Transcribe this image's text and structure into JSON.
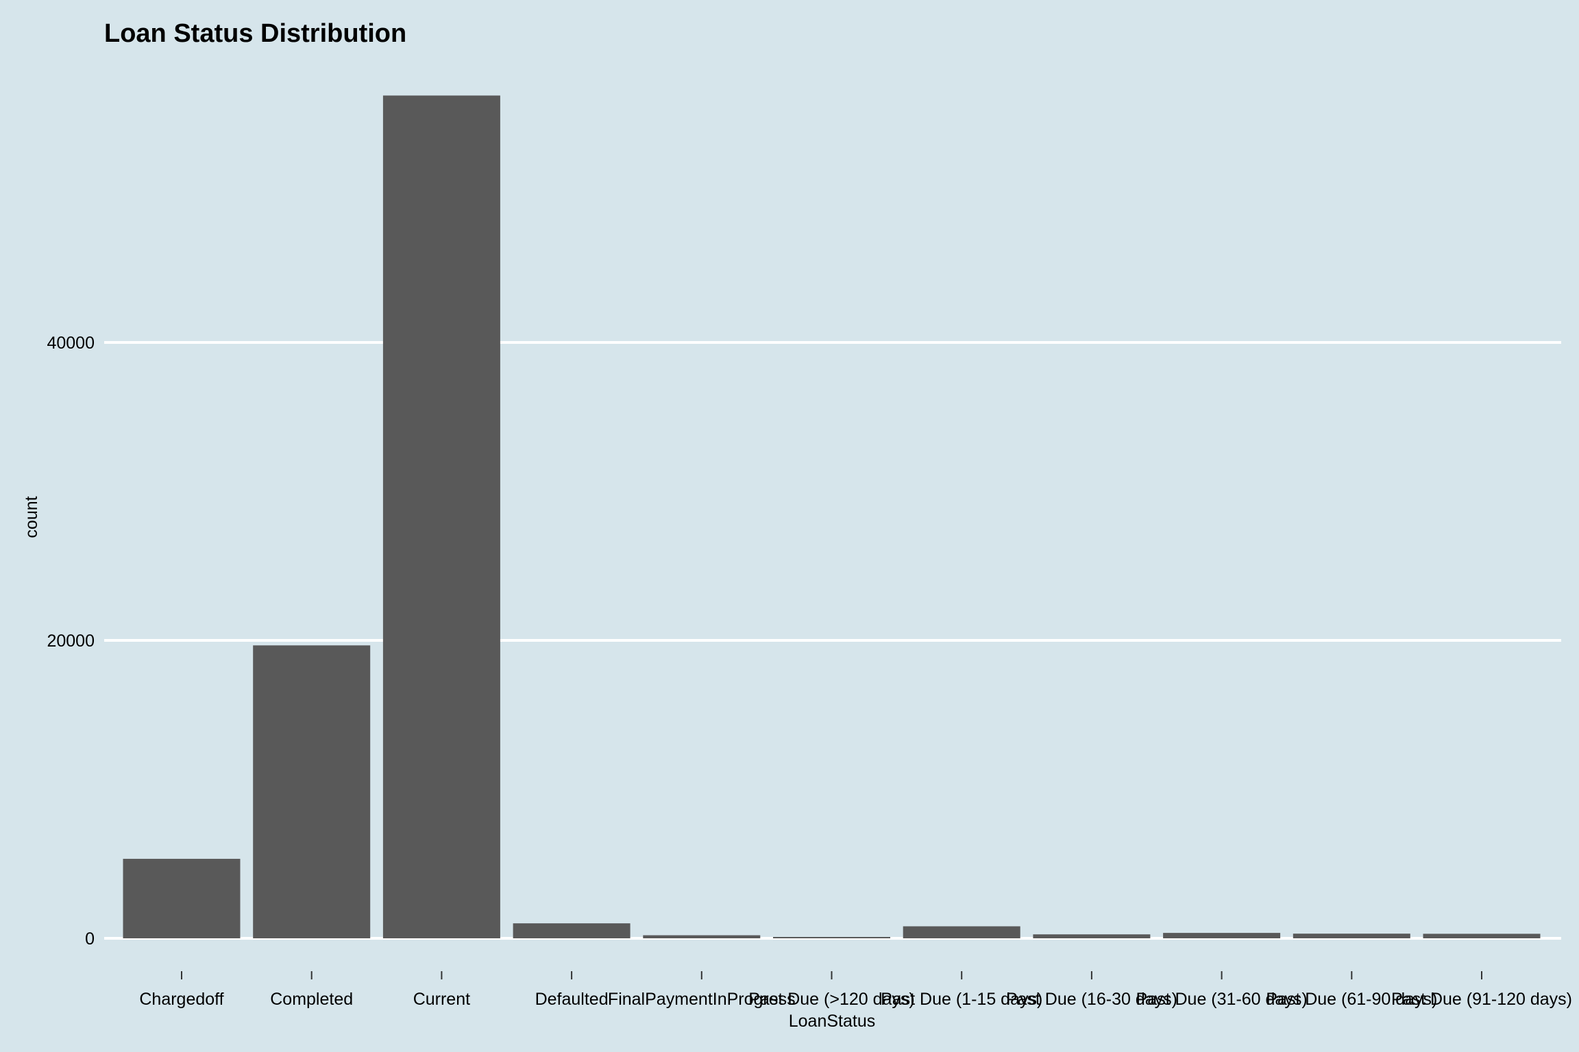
{
  "chart_data": {
    "type": "bar",
    "title": "Loan Status Distribution",
    "xlabel": "LoanStatus",
    "ylabel": "count",
    "categories": [
      "Chargedoff",
      "Completed",
      "Current",
      "Defaulted",
      "FinalPaymentInProgress",
      "Past Due (>120 days)",
      "Past Due (1-15 days)",
      "Past Due (16-30 days)",
      "Past Due (31-60 days)",
      "Past Due (61-90 days)",
      "Past Due (91-120 days)"
    ],
    "values": [
      5336,
      19664,
      56576,
      1005,
      205,
      16,
      806,
      265,
      363,
      313,
      304
    ],
    "yticks": [
      0,
      20000,
      40000
    ],
    "ytick_labels": [
      "0",
      "20000",
      "40000"
    ],
    "ylim": [
      0,
      60000
    ],
    "grid": true,
    "colors": {
      "background": "#d6e5eb",
      "bar": "#595959",
      "grid": "#ffffff"
    }
  }
}
